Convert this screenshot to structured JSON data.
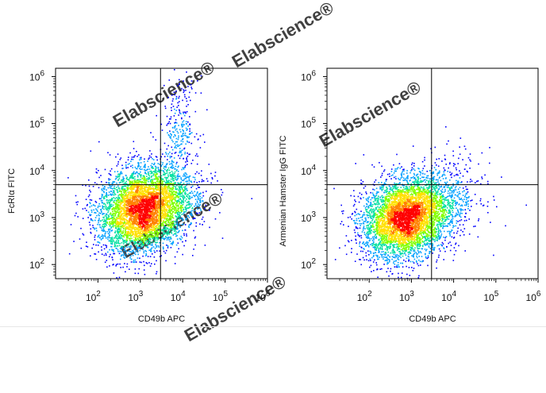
{
  "chart_data": [
    {
      "type": "scatter",
      "plot_style": "flow-cytometry pseudocolor density dot plot",
      "xlabel": "CD49b APC",
      "ylabel": "FcRIα FITC",
      "xscale": "log",
      "yscale": "log",
      "xlim": [
        10,
        1000000
      ],
      "ylim": [
        50,
        1500000
      ],
      "x_ticks": [
        {
          "base": "10",
          "exp": "2"
        },
        {
          "base": "10",
          "exp": "3"
        },
        {
          "base": "10",
          "exp": "4"
        },
        {
          "base": "10",
          "exp": "5"
        },
        {
          "base": "10",
          "exp": "6"
        }
      ],
      "y_ticks": [
        {
          "base": "10",
          "exp": "2"
        },
        {
          "base": "10",
          "exp": "3"
        },
        {
          "base": "10",
          "exp": "4"
        },
        {
          "base": "10",
          "exp": "5"
        },
        {
          "base": "10",
          "exp": "6"
        }
      ],
      "quadrant_gate": {
        "x": 3000,
        "y": 5000
      },
      "populations": [
        {
          "center_x": 1100,
          "center_y": 1500,
          "spread_log_x": 0.52,
          "spread_log_y": 0.45,
          "fraction": 0.9
        },
        {
          "center_x": 8000,
          "center_y": 80000,
          "spread_log_x": 0.22,
          "spread_log_y": 0.5,
          "fraction": 0.05
        },
        {
          "center_x": 8000,
          "center_y": 3000,
          "spread_log_x": 0.4,
          "spread_log_y": 0.35,
          "fraction": 0.05
        }
      ],
      "grid": false
    },
    {
      "type": "scatter",
      "plot_style": "flow-cytometry pseudocolor density dot plot",
      "xlabel": "CD49b APC",
      "ylabel": "Armenian Hamster IgG FITC",
      "xscale": "log",
      "yscale": "log",
      "xlim": [
        10,
        1000000
      ],
      "ylim": [
        50,
        1500000
      ],
      "x_ticks": [
        {
          "base": "10",
          "exp": "2"
        },
        {
          "base": "10",
          "exp": "3"
        },
        {
          "base": "10",
          "exp": "4"
        },
        {
          "base": "10",
          "exp": "5"
        },
        {
          "base": "10",
          "exp": "6"
        }
      ],
      "y_ticks": [
        {
          "base": "10",
          "exp": "2"
        },
        {
          "base": "10",
          "exp": "3"
        },
        {
          "base": "10",
          "exp": "4"
        },
        {
          "base": "10",
          "exp": "5"
        },
        {
          "base": "10",
          "exp": "6"
        }
      ],
      "quadrant_gate": {
        "x": 3000,
        "y": 5000
      },
      "populations": [
        {
          "center_x": 700,
          "center_y": 1000,
          "spread_log_x": 0.5,
          "spread_log_y": 0.42,
          "fraction": 0.9
        },
        {
          "center_x": 6000,
          "center_y": 2500,
          "spread_log_x": 0.45,
          "spread_log_y": 0.45,
          "fraction": 0.1
        }
      ],
      "grid": false
    }
  ],
  "watermark": {
    "text": "Elabscience®",
    "color": "#d6d6d6"
  },
  "colors": {
    "axis": "#000000",
    "gate": "#000000",
    "density_scale": [
      "#0000ff",
      "#00a0ff",
      "#00e0a0",
      "#80ff00",
      "#ffe000",
      "#ff8000",
      "#ff0000"
    ]
  }
}
